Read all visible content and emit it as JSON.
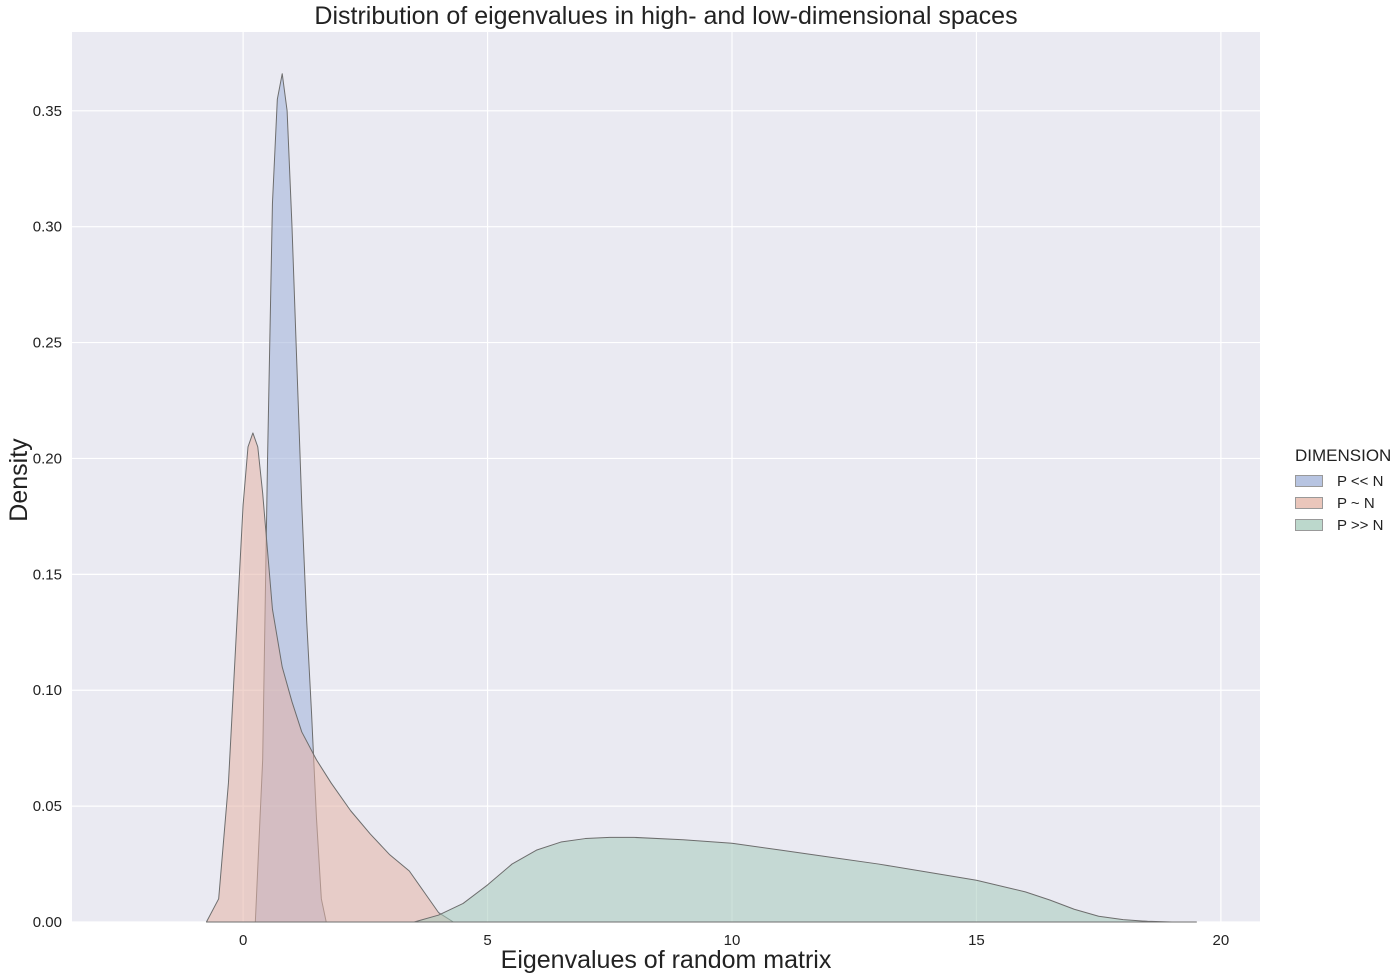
{
  "chart_data": {
    "type": "area",
    "title": "Distribution of eigenvalues in high- and low-dimensional spaces",
    "xlabel": "Eigenvalues of random matrix",
    "ylabel": "Density",
    "xlim": [
      -3.5,
      20.8
    ],
    "ylim": [
      0,
      0.384
    ],
    "xticks": [
      0,
      5,
      10,
      15,
      20
    ],
    "yticks": [
      0.0,
      0.05,
      0.1,
      0.15,
      0.2,
      0.25,
      0.3,
      0.35
    ],
    "xtick_labels": [
      "0",
      "5",
      "10",
      "15",
      "20"
    ],
    "ytick_labels": [
      "0.00",
      "0.05",
      "0.10",
      "0.15",
      "0.20",
      "0.25",
      "0.30",
      "0.35"
    ],
    "grid": true,
    "legend_position": "right",
    "legend_title": "DIMENSION",
    "series": [
      {
        "name": "P << N",
        "color": "#9fb1d8",
        "x": [
          0.25,
          0.4,
          0.5,
          0.6,
          0.7,
          0.8,
          0.9,
          1.0,
          1.1,
          1.2,
          1.3,
          1.4,
          1.5,
          1.6,
          1.7
        ],
        "y": [
          0.0,
          0.07,
          0.2,
          0.31,
          0.355,
          0.366,
          0.35,
          0.3,
          0.24,
          0.18,
          0.13,
          0.09,
          0.045,
          0.01,
          0.0
        ]
      },
      {
        "name": "P ~ N",
        "color": "#e4b3a5",
        "x": [
          -0.75,
          -0.5,
          -0.3,
          -0.1,
          0.0,
          0.1,
          0.2,
          0.3,
          0.4,
          0.5,
          0.6,
          0.8,
          1.0,
          1.2,
          1.5,
          1.8,
          2.2,
          2.6,
          3.0,
          3.4,
          3.7,
          4.0,
          4.3
        ],
        "y": [
          0.0,
          0.01,
          0.06,
          0.14,
          0.18,
          0.205,
          0.211,
          0.205,
          0.185,
          0.16,
          0.135,
          0.11,
          0.095,
          0.082,
          0.07,
          0.06,
          0.048,
          0.038,
          0.029,
          0.022,
          0.013,
          0.004,
          0.0
        ]
      },
      {
        "name": "P >> N",
        "color": "#a6cbbc",
        "x": [
          3.5,
          4.0,
          4.5,
          5.0,
          5.5,
          6.0,
          6.5,
          7.0,
          7.5,
          8.0,
          9.0,
          10.0,
          11.0,
          12.0,
          13.0,
          14.0,
          15.0,
          16.0,
          16.5,
          17.0,
          17.5,
          18.0,
          18.5,
          19.0,
          19.5
        ],
        "y": [
          0.0,
          0.003,
          0.008,
          0.016,
          0.025,
          0.031,
          0.0345,
          0.036,
          0.0365,
          0.0365,
          0.0355,
          0.034,
          0.031,
          0.028,
          0.025,
          0.0215,
          0.018,
          0.013,
          0.0095,
          0.0055,
          0.0025,
          0.001,
          0.0003,
          0.0,
          0.0
        ]
      }
    ]
  }
}
